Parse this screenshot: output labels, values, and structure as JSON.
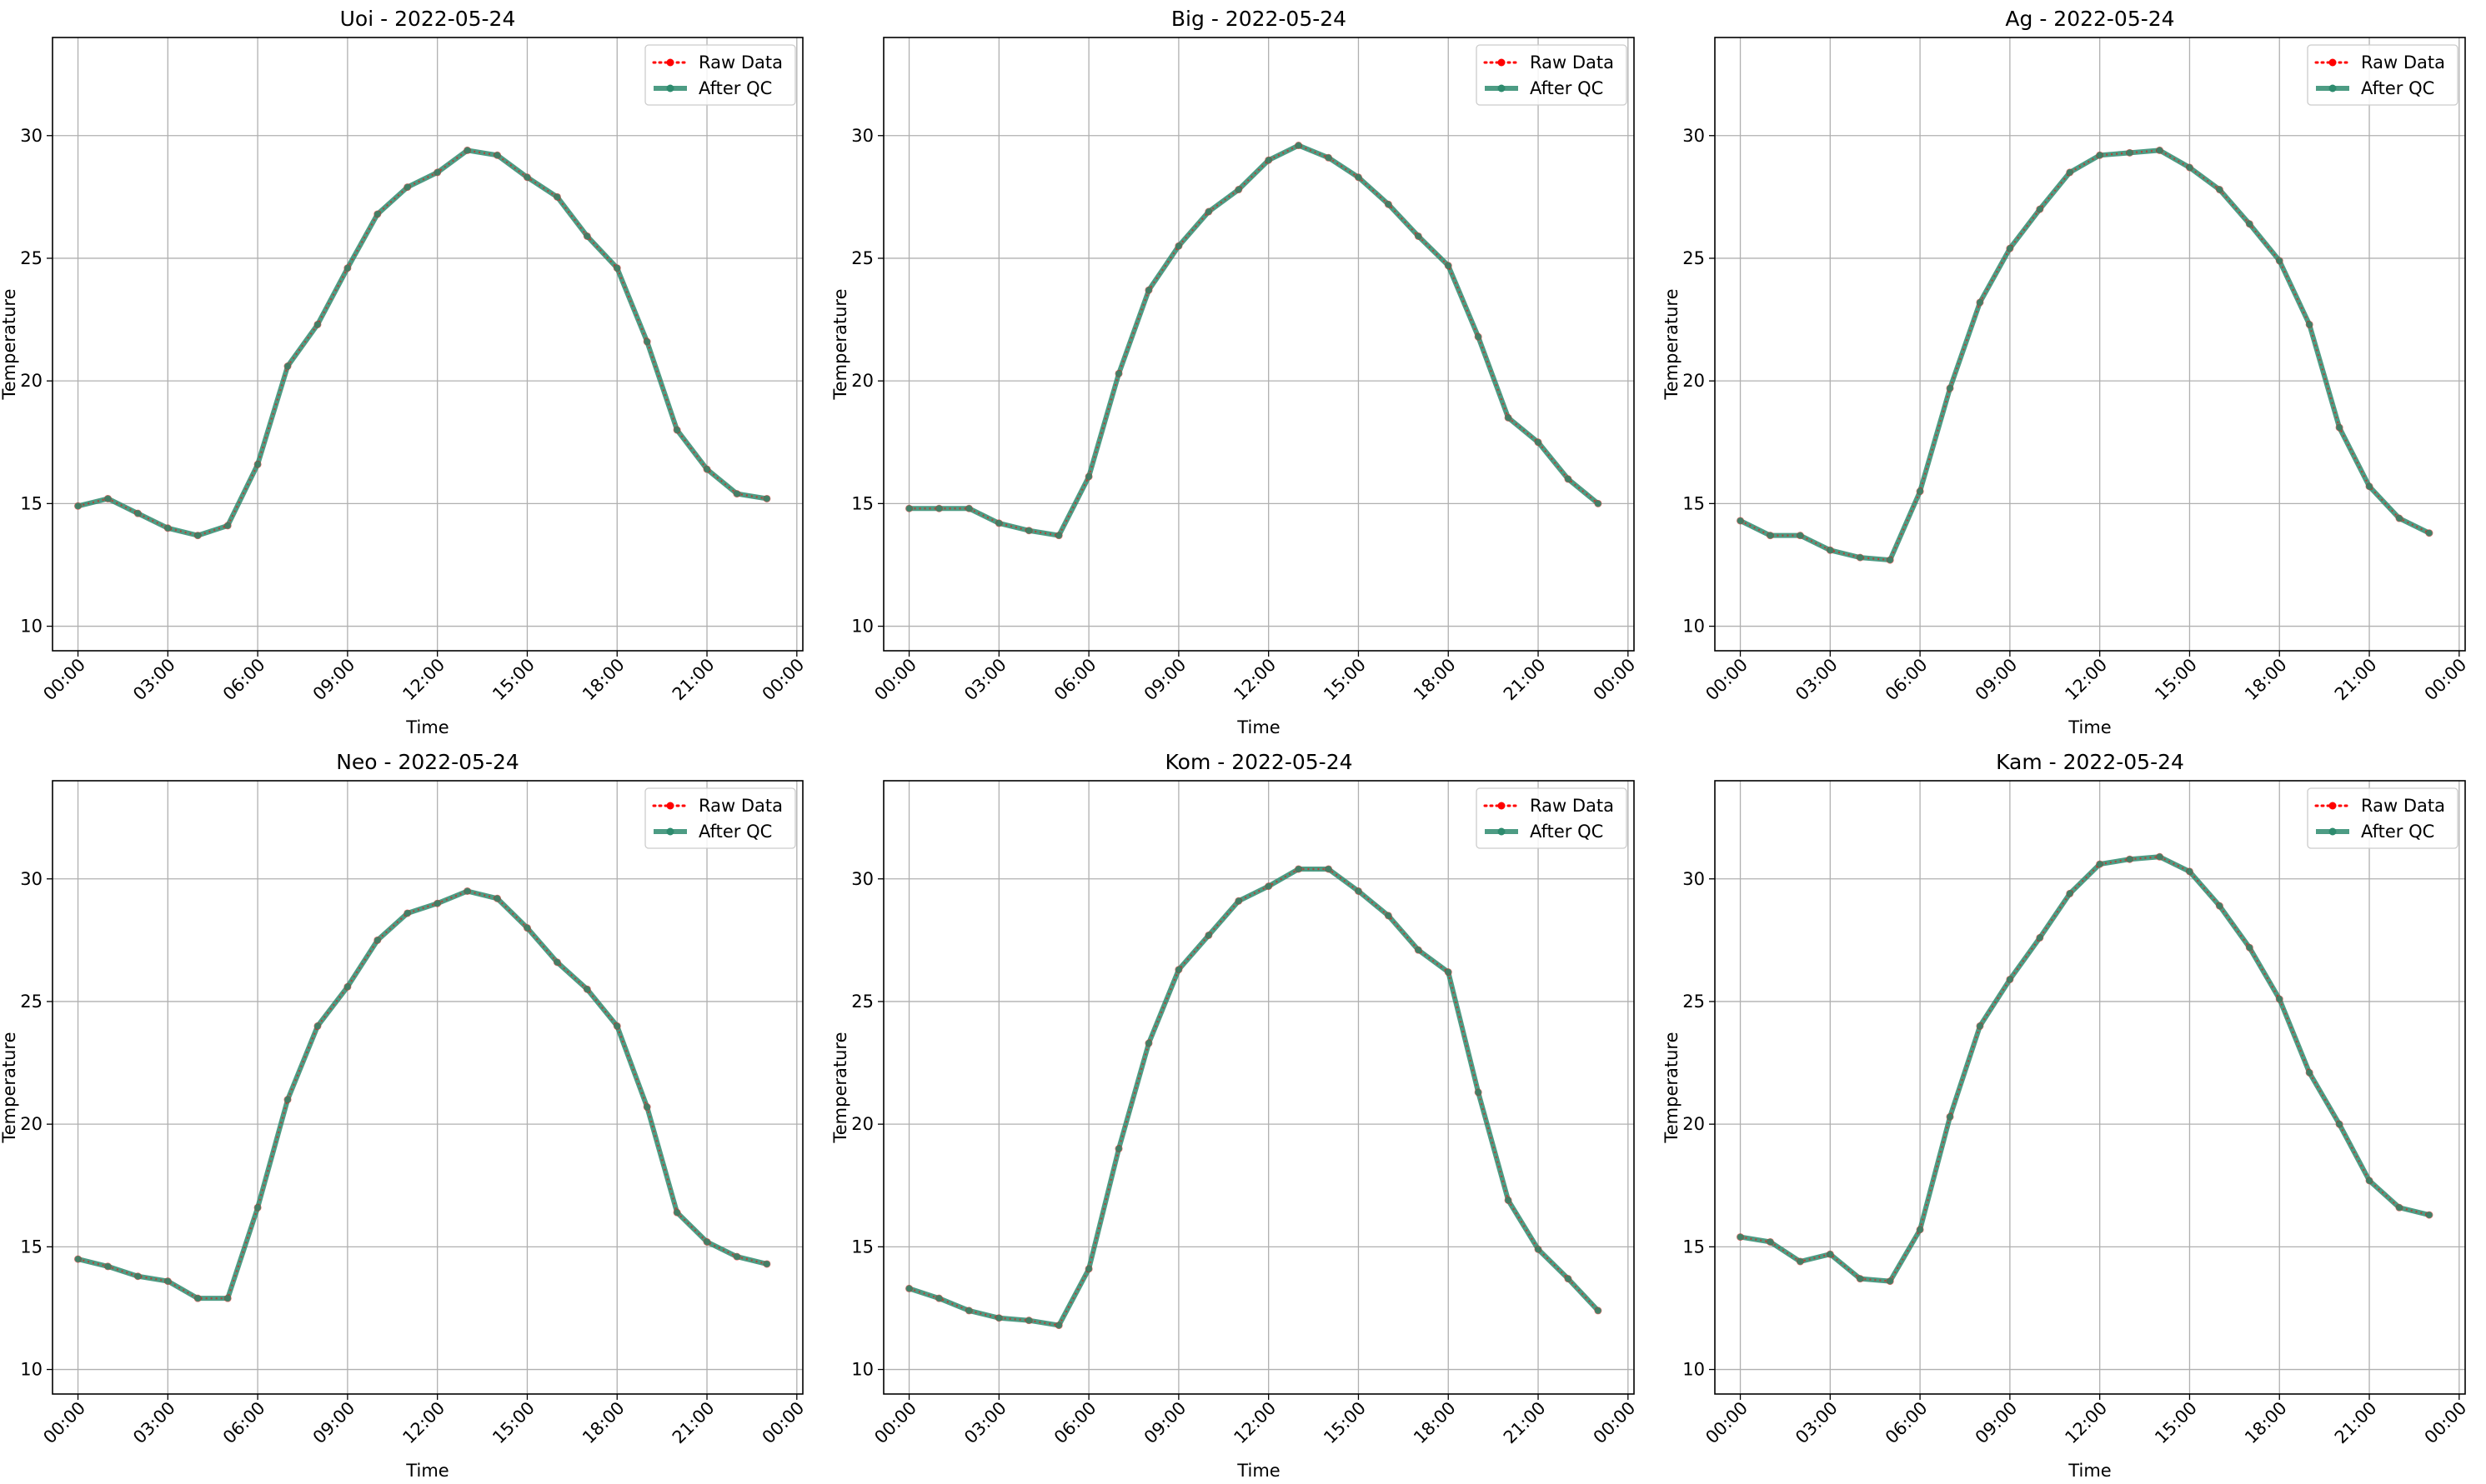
{
  "colors": {
    "raw": "#ff0000",
    "qc": "#2e8b6e",
    "grid": "#b0b0b0",
    "axis": "#000000"
  },
  "chart_data": [
    {
      "type": "line",
      "title": "Uoi - 2022-05-24",
      "xlabel": "Time",
      "ylabel": "Temperature",
      "ylim": [
        9,
        34
      ],
      "xlim_hours": [
        -0.85,
        24.2
      ],
      "xticks_hours": [
        0,
        3,
        6,
        9,
        12,
        15,
        18,
        21,
        24
      ],
      "xtick_labels": [
        "00:00",
        "03:00",
        "06:00",
        "09:00",
        "12:00",
        "15:00",
        "18:00",
        "21:00",
        "00:00"
      ],
      "yticks": [
        10,
        15,
        20,
        25,
        30
      ],
      "grid": true,
      "legend_position": "top-right",
      "x_hours": [
        0,
        1,
        2,
        3,
        4,
        5,
        6,
        7,
        8,
        9,
        10,
        11,
        12,
        13,
        14,
        15,
        16,
        17,
        18,
        19,
        20,
        21,
        22,
        23
      ],
      "series": [
        {
          "name": "Raw Data",
          "values": [
            14.9,
            15.2,
            14.6,
            14.0,
            13.7,
            14.1,
            16.6,
            20.6,
            22.3,
            24.6,
            26.8,
            27.9,
            28.5,
            29.4,
            29.2,
            28.3,
            27.5,
            25.9,
            24.6,
            21.6,
            18.0,
            16.4,
            15.4,
            15.2
          ]
        },
        {
          "name": "After QC",
          "values": [
            14.9,
            15.2,
            14.6,
            14.0,
            13.7,
            14.1,
            16.6,
            20.6,
            22.3,
            24.6,
            26.8,
            27.9,
            28.5,
            29.4,
            29.2,
            28.3,
            27.5,
            25.9,
            24.6,
            21.6,
            18.0,
            16.4,
            15.4,
            15.2
          ]
        }
      ]
    },
    {
      "type": "line",
      "title": "Big - 2022-05-24",
      "xlabel": "Time",
      "ylabel": "Temperature",
      "ylim": [
        9,
        34
      ],
      "xlim_hours": [
        -0.85,
        24.2
      ],
      "xticks_hours": [
        0,
        3,
        6,
        9,
        12,
        15,
        18,
        21,
        24
      ],
      "xtick_labels": [
        "00:00",
        "03:00",
        "06:00",
        "09:00",
        "12:00",
        "15:00",
        "18:00",
        "21:00",
        "00:00"
      ],
      "yticks": [
        10,
        15,
        20,
        25,
        30
      ],
      "grid": true,
      "legend_position": "top-right",
      "x_hours": [
        0,
        1,
        2,
        3,
        4,
        5,
        6,
        7,
        8,
        9,
        10,
        11,
        12,
        13,
        14,
        15,
        16,
        17,
        18,
        19,
        20,
        21,
        22,
        23
      ],
      "series": [
        {
          "name": "Raw Data",
          "values": [
            14.8,
            14.8,
            14.8,
            14.2,
            13.9,
            13.7,
            16.1,
            20.3,
            23.7,
            25.5,
            26.9,
            27.8,
            29.0,
            29.6,
            29.1,
            28.3,
            27.2,
            25.9,
            24.7,
            21.8,
            18.5,
            17.5,
            16.0,
            15.0
          ]
        },
        {
          "name": "After QC",
          "values": [
            14.8,
            14.8,
            14.8,
            14.2,
            13.9,
            13.7,
            16.1,
            20.3,
            23.7,
            25.5,
            26.9,
            27.8,
            29.0,
            29.6,
            29.1,
            28.3,
            27.2,
            25.9,
            24.7,
            21.8,
            18.5,
            17.5,
            16.0,
            15.0
          ]
        }
      ]
    },
    {
      "type": "line",
      "title": "Ag - 2022-05-24",
      "xlabel": "Time",
      "ylabel": "Temperature",
      "ylim": [
        9,
        34
      ],
      "xlim_hours": [
        -0.85,
        24.2
      ],
      "xticks_hours": [
        0,
        3,
        6,
        9,
        12,
        15,
        18,
        21,
        24
      ],
      "xtick_labels": [
        "00:00",
        "03:00",
        "06:00",
        "09:00",
        "12:00",
        "15:00",
        "18:00",
        "21:00",
        "00:00"
      ],
      "yticks": [
        10,
        15,
        20,
        25,
        30
      ],
      "grid": true,
      "legend_position": "top-right",
      "x_hours": [
        0,
        1,
        2,
        3,
        4,
        5,
        6,
        7,
        8,
        9,
        10,
        11,
        12,
        13,
        14,
        15,
        16,
        17,
        18,
        19,
        20,
        21,
        22,
        23
      ],
      "series": [
        {
          "name": "Raw Data",
          "values": [
            14.3,
            13.7,
            13.7,
            13.1,
            12.8,
            12.7,
            15.5,
            19.7,
            23.2,
            25.4,
            27.0,
            28.5,
            29.2,
            29.3,
            29.4,
            28.7,
            27.8,
            26.4,
            24.9,
            22.3,
            18.1,
            15.7,
            14.4,
            13.8
          ]
        },
        {
          "name": "After QC",
          "values": [
            14.3,
            13.7,
            13.7,
            13.1,
            12.8,
            12.7,
            15.5,
            19.7,
            23.2,
            25.4,
            27.0,
            28.5,
            29.2,
            29.3,
            29.4,
            28.7,
            27.8,
            26.4,
            24.9,
            22.3,
            18.1,
            15.7,
            14.4,
            13.8
          ]
        }
      ]
    },
    {
      "type": "line",
      "title": "Neo - 2022-05-24",
      "xlabel": "Time",
      "ylabel": "Temperature",
      "ylim": [
        9,
        34
      ],
      "xlim_hours": [
        -0.85,
        24.2
      ],
      "xticks_hours": [
        0,
        3,
        6,
        9,
        12,
        15,
        18,
        21,
        24
      ],
      "xtick_labels": [
        "00:00",
        "03:00",
        "06:00",
        "09:00",
        "12:00",
        "15:00",
        "18:00",
        "21:00",
        "00:00"
      ],
      "yticks": [
        10,
        15,
        20,
        25,
        30
      ],
      "grid": true,
      "legend_position": "top-right",
      "x_hours": [
        0,
        1,
        2,
        3,
        4,
        5,
        6,
        7,
        8,
        9,
        10,
        11,
        12,
        13,
        14,
        15,
        16,
        17,
        18,
        19,
        20,
        21,
        22,
        23
      ],
      "series": [
        {
          "name": "Raw Data",
          "values": [
            14.5,
            14.2,
            13.8,
            13.6,
            12.9,
            12.9,
            16.6,
            21.0,
            24.0,
            25.6,
            27.5,
            28.6,
            29.0,
            29.5,
            29.2,
            28.0,
            26.6,
            25.5,
            24.0,
            20.7,
            16.4,
            15.2,
            14.6,
            14.3
          ]
        },
        {
          "name": "After QC",
          "values": [
            14.5,
            14.2,
            13.8,
            13.6,
            12.9,
            12.9,
            16.6,
            21.0,
            24.0,
            25.6,
            27.5,
            28.6,
            29.0,
            29.5,
            29.2,
            28.0,
            26.6,
            25.5,
            24.0,
            20.7,
            16.4,
            15.2,
            14.6,
            14.3
          ]
        }
      ]
    },
    {
      "type": "line",
      "title": "Kom - 2022-05-24",
      "xlabel": "Time",
      "ylabel": "Temperature",
      "ylim": [
        9,
        34
      ],
      "xlim_hours": [
        -0.85,
        24.2
      ],
      "xticks_hours": [
        0,
        3,
        6,
        9,
        12,
        15,
        18,
        21,
        24
      ],
      "xtick_labels": [
        "00:00",
        "03:00",
        "06:00",
        "09:00",
        "12:00",
        "15:00",
        "18:00",
        "21:00",
        "00:00"
      ],
      "yticks": [
        10,
        15,
        20,
        25,
        30
      ],
      "grid": true,
      "legend_position": "top-right",
      "x_hours": [
        0,
        1,
        2,
        3,
        4,
        5,
        6,
        7,
        8,
        9,
        10,
        11,
        12,
        13,
        14,
        15,
        16,
        17,
        18,
        19,
        20,
        21,
        22,
        23
      ],
      "series": [
        {
          "name": "Raw Data",
          "values": [
            13.3,
            12.9,
            12.4,
            12.1,
            12.0,
            11.8,
            14.1,
            19.0,
            23.3,
            26.3,
            27.7,
            29.1,
            29.7,
            30.4,
            30.4,
            29.5,
            28.5,
            27.1,
            26.2,
            21.3,
            16.9,
            14.9,
            13.7,
            12.4
          ]
        },
        {
          "name": "After QC",
          "values": [
            13.3,
            12.9,
            12.4,
            12.1,
            12.0,
            11.8,
            14.1,
            19.0,
            23.3,
            26.3,
            27.7,
            29.1,
            29.7,
            30.4,
            30.4,
            29.5,
            28.5,
            27.1,
            26.2,
            21.3,
            16.9,
            14.9,
            13.7,
            12.4
          ]
        }
      ]
    },
    {
      "type": "line",
      "title": "Kam - 2022-05-24",
      "xlabel": "Time",
      "ylabel": "Temperature",
      "ylim": [
        9,
        34
      ],
      "xlim_hours": [
        -0.85,
        24.2
      ],
      "xticks_hours": [
        0,
        3,
        6,
        9,
        12,
        15,
        18,
        21,
        24
      ],
      "xtick_labels": [
        "00:00",
        "03:00",
        "06:00",
        "09:00",
        "12:00",
        "15:00",
        "18:00",
        "21:00",
        "00:00"
      ],
      "yticks": [
        10,
        15,
        20,
        25,
        30
      ],
      "grid": true,
      "legend_position": "top-right",
      "x_hours": [
        0,
        1,
        2,
        3,
        4,
        5,
        6,
        7,
        8,
        9,
        10,
        11,
        12,
        13,
        14,
        15,
        16,
        17,
        18,
        19,
        20,
        21,
        22,
        23
      ],
      "series": [
        {
          "name": "Raw Data",
          "values": [
            15.4,
            15.2,
            14.4,
            14.7,
            13.7,
            13.6,
            15.7,
            20.3,
            24.0,
            25.9,
            27.6,
            29.4,
            30.6,
            30.8,
            30.9,
            30.3,
            28.9,
            27.2,
            25.1,
            22.1,
            20.0,
            17.7,
            16.6,
            16.3
          ]
        },
        {
          "name": "After QC",
          "values": [
            15.4,
            15.2,
            14.4,
            14.7,
            13.7,
            13.6,
            15.7,
            20.3,
            24.0,
            25.9,
            27.6,
            29.4,
            30.6,
            30.8,
            30.9,
            30.3,
            28.9,
            27.2,
            25.1,
            22.1,
            20.0,
            17.7,
            16.6,
            16.3
          ]
        }
      ]
    }
  ]
}
